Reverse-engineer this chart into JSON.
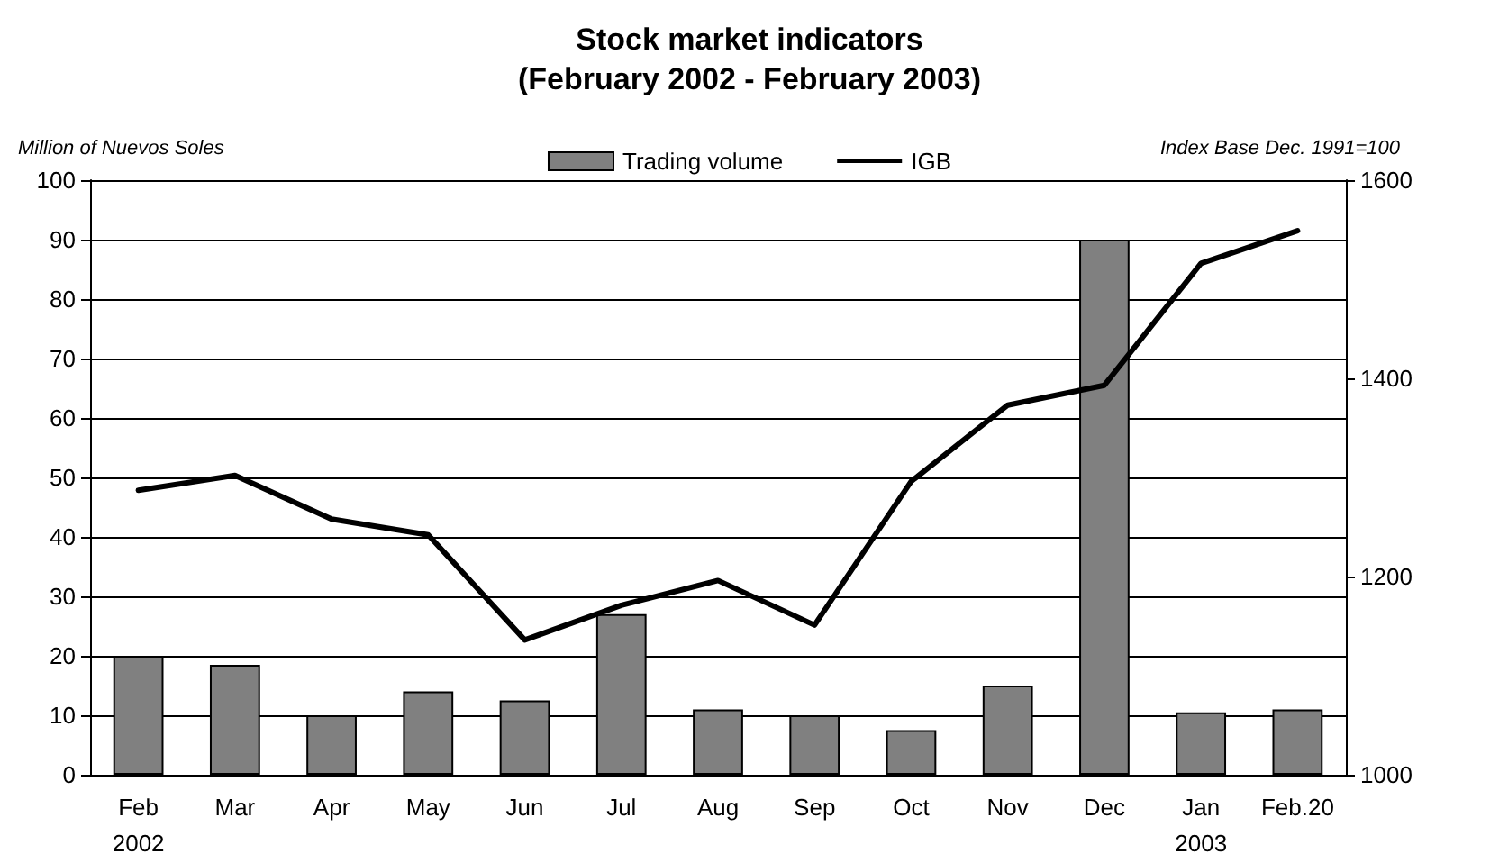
{
  "chart_data": {
    "type": "bar",
    "title": "Stock market indicators\n(February 2002 - February 2003)",
    "ylabel": "Million of Nuevos Soles",
    "y2label": "Index Base Dec. 1991=100",
    "categories": [
      "Feb\n2002",
      "Mar",
      "Apr",
      "May",
      "Jun",
      "Jul",
      "Aug",
      "Sep",
      "Oct",
      "Nov",
      "Dec",
      "Jan\n2003",
      "Feb.20"
    ],
    "series": [
      {
        "name": "Trading volume",
        "color": "#808080",
        "values": [
          20,
          18.5,
          10,
          14,
          12.5,
          27,
          11,
          10,
          7.5,
          15,
          90,
          10.5,
          11
        ]
      },
      {
        "name": "IGB",
        "type": "line",
        "axis": "y2",
        "color": "#000000",
        "values": [
          1287,
          1302,
          1258,
          1242,
          1136,
          1171,
          1196,
          1151,
          1296,
          1373,
          1393,
          1516,
          1549
        ]
      }
    ],
    "ylim": [
      0,
      100
    ],
    "yticks": [
      0,
      10,
      20,
      30,
      40,
      50,
      60,
      70,
      80,
      90,
      100
    ],
    "y2lim": [
      1000,
      1600
    ],
    "y2ticks": [
      1000,
      1200,
      1400,
      1600
    ],
    "grid": "y",
    "legend": "top",
    "marker": "none",
    "line_style": "solid"
  }
}
